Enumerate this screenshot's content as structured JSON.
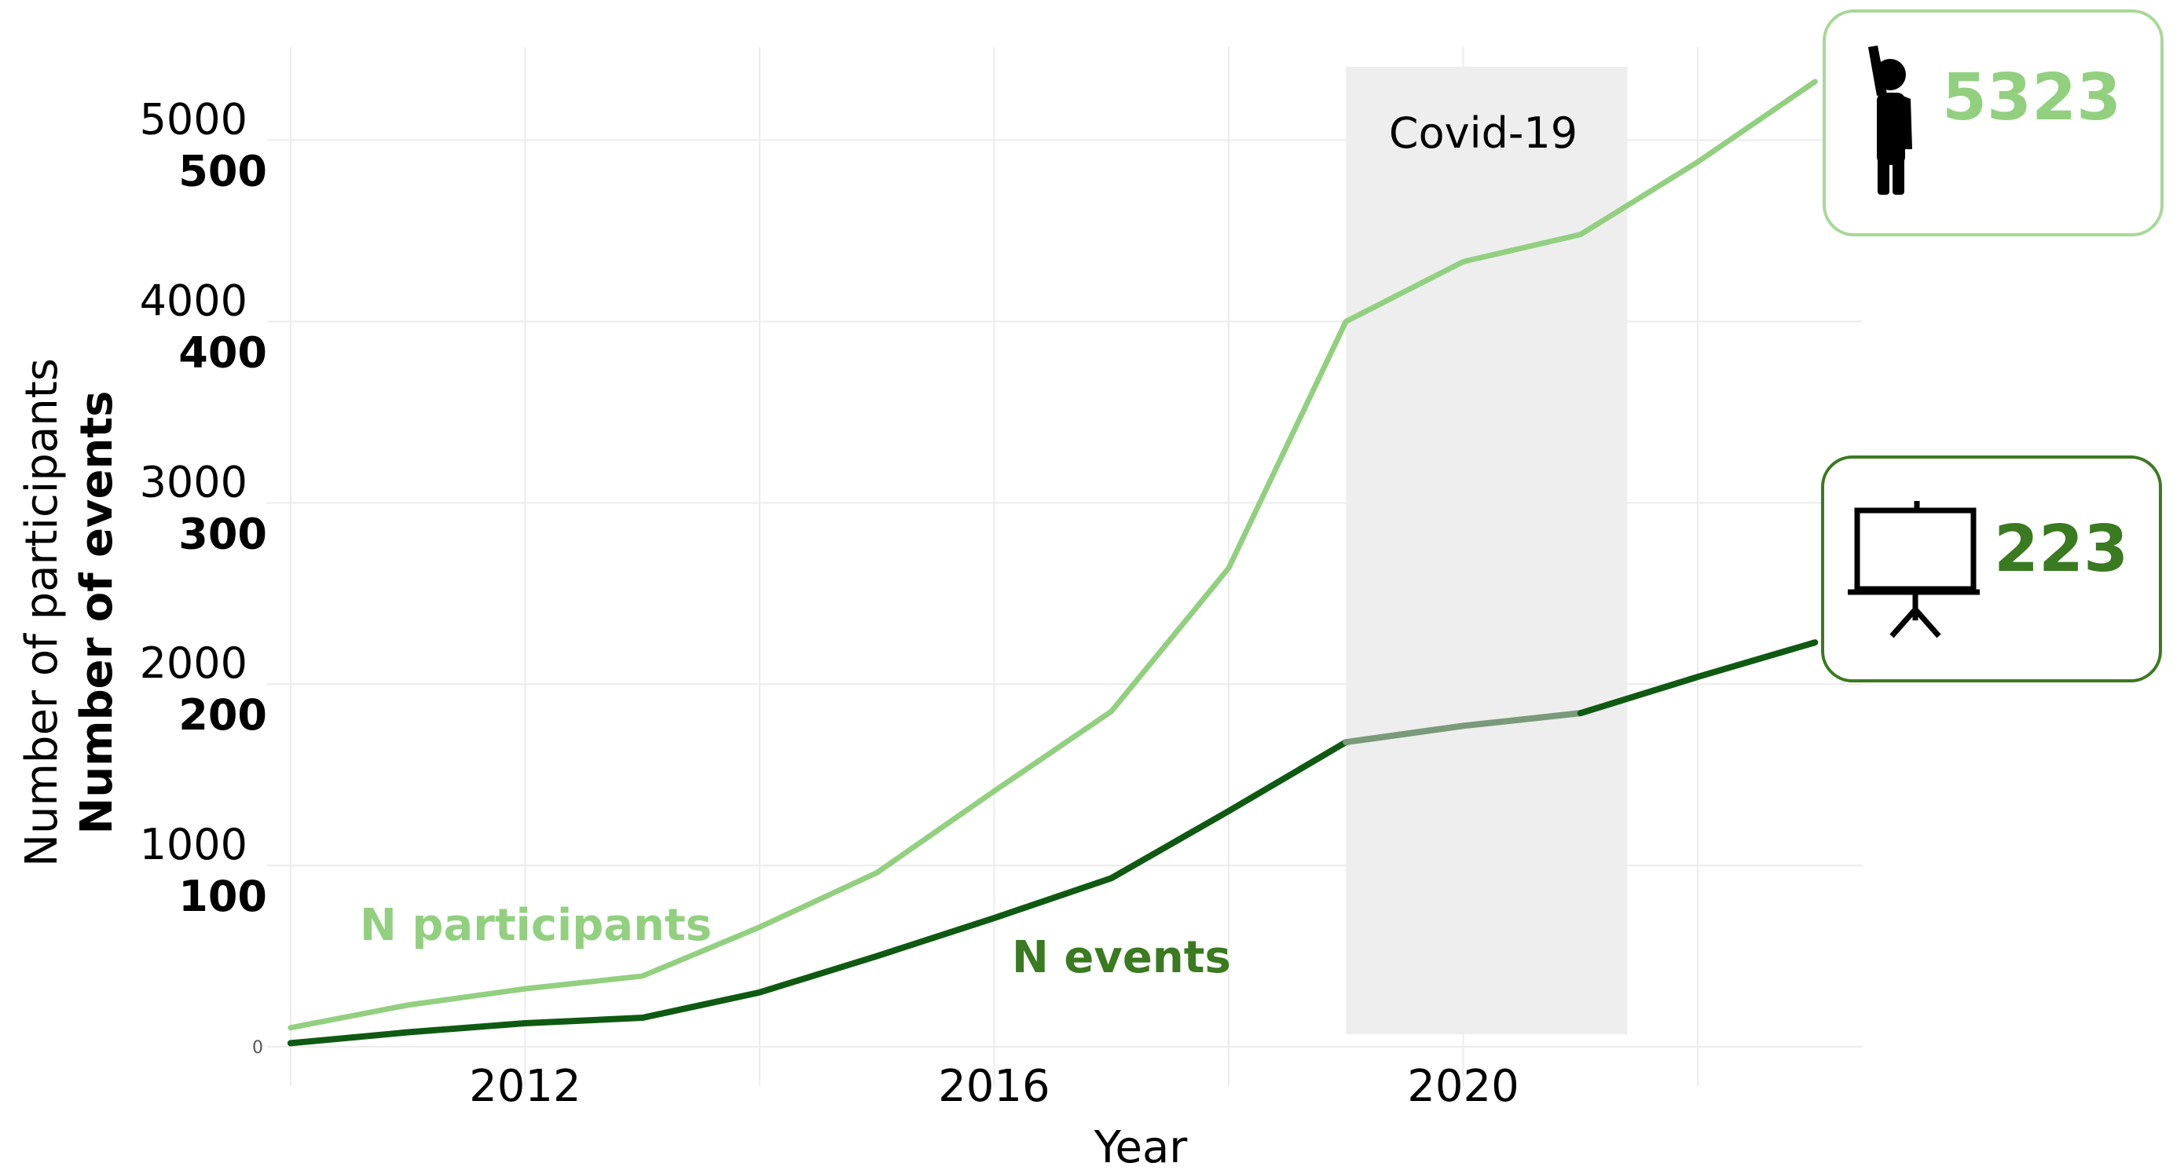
{
  "chart_data": {
    "type": "line",
    "xlabel": "Year",
    "ylabel_primary": "Number of participants",
    "ylabel_secondary": "Number of events",
    "x_tick_labels": [
      "2012",
      "2016",
      "2020"
    ],
    "x_ticks": [
      2012,
      2016,
      2020
    ],
    "xlim": [
      2009.8,
      2023.4
    ],
    "y_ticks_participants": [
      {
        "value": 1000,
        "label": "1000"
      },
      {
        "value": 2000,
        "label": "2000"
      },
      {
        "value": 3000,
        "label": "3000"
      },
      {
        "value": 4000,
        "label": "4000"
      },
      {
        "value": 5000,
        "label": "5000"
      }
    ],
    "y_ticks_events": [
      {
        "value": 100,
        "label": "100"
      },
      {
        "value": 200,
        "label": "200"
      },
      {
        "value": 300,
        "label": "300"
      },
      {
        "value": 400,
        "label": "400"
      },
      {
        "value": 500,
        "label": "500"
      }
    ],
    "zero_label": "0",
    "ylim_participants": [
      0,
      5600
    ],
    "grid": true,
    "shaded_region": {
      "label": "Covid-19",
      "x_start": 2019,
      "x_end": 2021.4
    },
    "x": [
      2010,
      2011,
      2012,
      2013,
      2014,
      2015,
      2016,
      2017,
      2018,
      2019,
      2020,
      2021,
      2022,
      2023
    ],
    "series": [
      {
        "name": "N participants",
        "color": "#92d080",
        "values": [
          105,
          230,
          320,
          390,
          660,
          960,
          1410,
          1850,
          2640,
          4000,
          4330,
          4480,
          4880,
          5323
        ]
      },
      {
        "name": "N events",
        "color": "#0f5a12",
        "covid_color": "#7a9a7a",
        "values": [
          2,
          8,
          13,
          16,
          30,
          50,
          71,
          93,
          130,
          168,
          177,
          184,
          204,
          223
        ]
      }
    ],
    "callouts": [
      {
        "value": "5323",
        "icon": "raised-hand-person-icon",
        "color": "#92d080",
        "border": "#a8d898"
      },
      {
        "value": "223",
        "icon": "presentation-board-icon",
        "color": "#3a7a20",
        "border": "#3a7a20"
      }
    ]
  }
}
